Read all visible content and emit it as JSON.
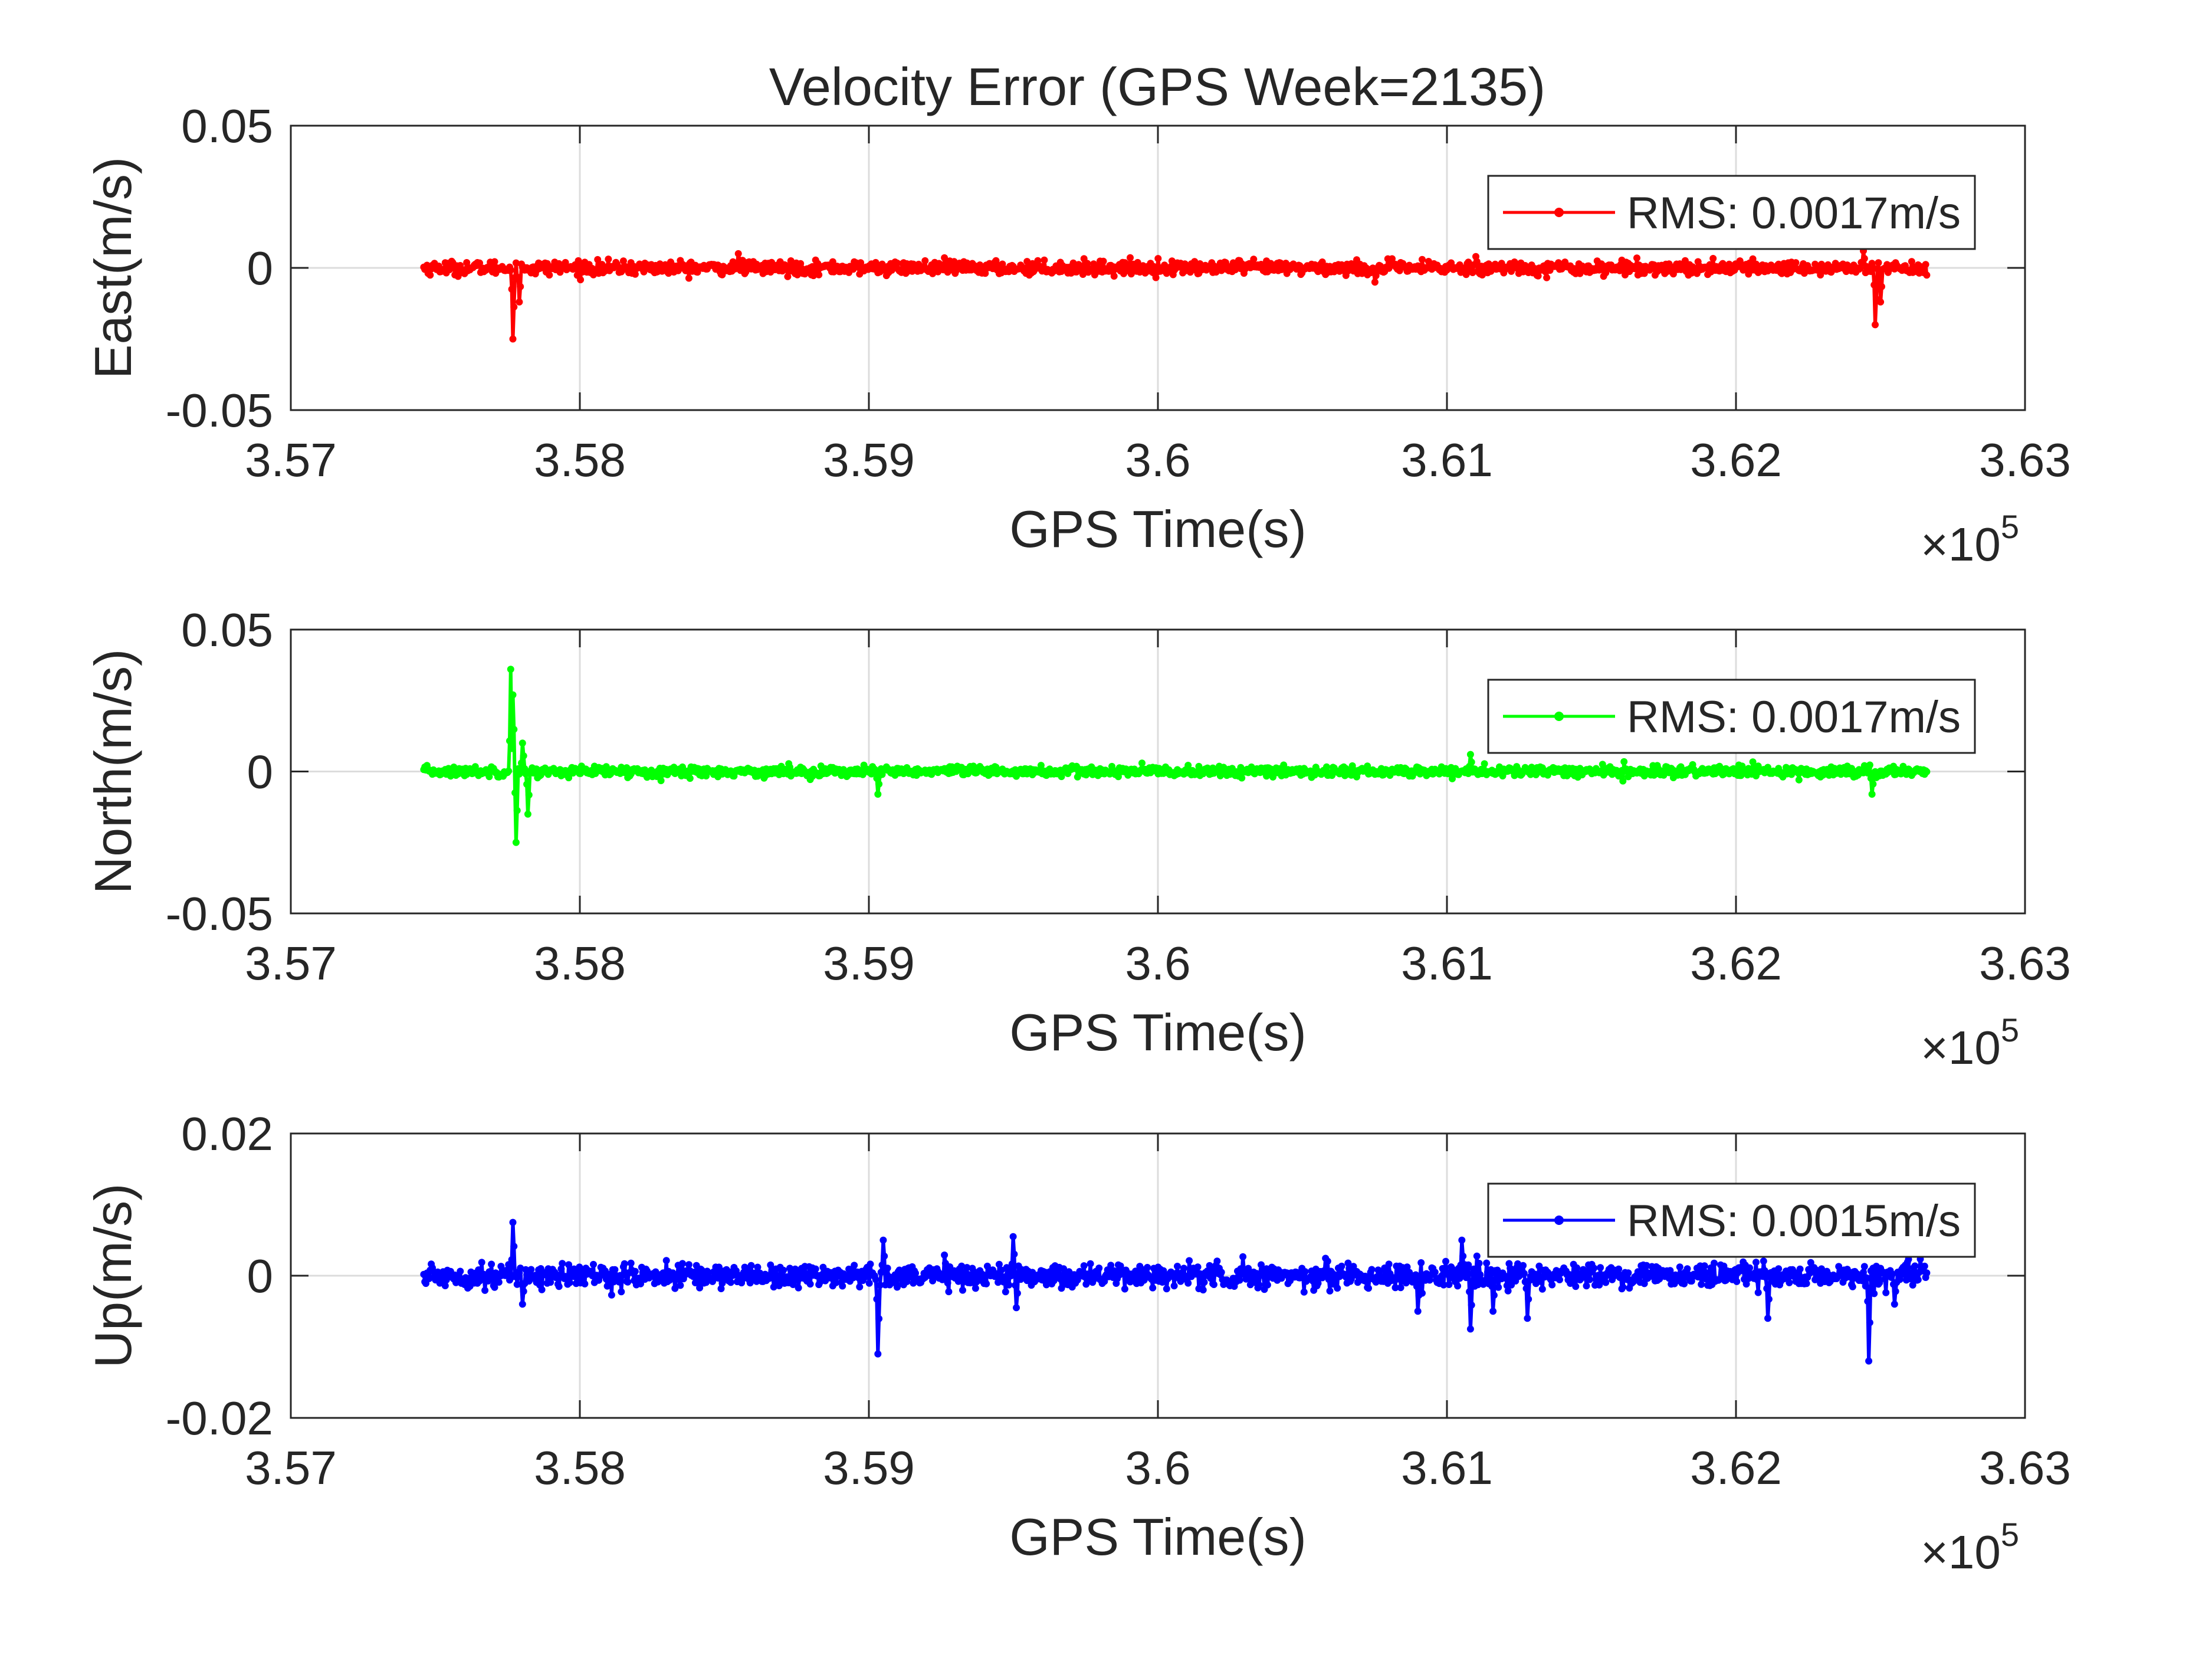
{
  "chart_data": [
    {
      "type": "line",
      "title": "Velocity Error (GPS Week=2135)",
      "xlabel": "GPS Time(s)",
      "ylabel": "East(m/s)",
      "x_multiplier": "×10",
      "x_multiplier_exponent": "5",
      "xlim": [
        357000,
        363000
      ],
      "ylim": [
        -0.05,
        0.05
      ],
      "xticks": [
        357000,
        358000,
        359000,
        360000,
        361000,
        362000,
        363000
      ],
      "xtick_labels": [
        "3.57",
        "3.58",
        "3.59",
        "3.6",
        "3.61",
        "3.62",
        "3.63"
      ],
      "yticks": [
        -0.05,
        0,
        0.05
      ],
      "ytick_labels": [
        "-0.05",
        "0",
        "0.05"
      ],
      "grid": true,
      "legend_position": "top-right",
      "series": [
        {
          "name": "RMS: 0.0017m/s",
          "color": "#ff0000",
          "noise": 0.0017,
          "x": [
            357460,
            362660
          ],
          "spikes": [
            {
              "x": 357770,
              "y": -0.025
            },
            {
              "x": 357790,
              "y": -0.012
            },
            {
              "x": 358550,
              "y": 0.005
            },
            {
              "x": 360750,
              "y": -0.005
            },
            {
              "x": 361100,
              "y": 0.004
            },
            {
              "x": 362440,
              "y": 0.006
            },
            {
              "x": 362480,
              "y": -0.02
            },
            {
              "x": 362500,
              "y": -0.012
            }
          ]
        }
      ]
    },
    {
      "type": "line",
      "title": "",
      "xlabel": "GPS Time(s)",
      "ylabel": "North(m/s)",
      "x_multiplier": "×10",
      "x_multiplier_exponent": "5",
      "xlim": [
        357000,
        363000
      ],
      "ylim": [
        -0.05,
        0.05
      ],
      "xticks": [
        357000,
        358000,
        359000,
        360000,
        361000,
        362000,
        363000
      ],
      "xtick_labels": [
        "3.57",
        "3.58",
        "3.59",
        "3.6",
        "3.61",
        "3.62",
        "3.63"
      ],
      "yticks": [
        -0.05,
        0,
        0.05
      ],
      "ytick_labels": [
        "-0.05",
        "0",
        "0.05"
      ],
      "grid": true,
      "legend_position": "top-right",
      "series": [
        {
          "name": "RMS: 0.0017m/s",
          "color": "#00ff00",
          "noise": 0.0013,
          "x": [
            357460,
            362660
          ],
          "spikes": [
            {
              "x": 357760,
              "y": 0.036
            },
            {
              "x": 357770,
              "y": 0.027
            },
            {
              "x": 357780,
              "y": -0.025
            },
            {
              "x": 357800,
              "y": 0.01
            },
            {
              "x": 357820,
              "y": -0.015
            },
            {
              "x": 359030,
              "y": -0.008
            },
            {
              "x": 361080,
              "y": 0.006
            },
            {
              "x": 362470,
              "y": -0.008
            }
          ]
        }
      ]
    },
    {
      "type": "line",
      "title": "",
      "xlabel": "GPS Time(s)",
      "ylabel": "Up(m/s)",
      "x_multiplier": "×10",
      "x_multiplier_exponent": "5",
      "xlim": [
        357000,
        363000
      ],
      "ylim": [
        -0.02,
        0.02
      ],
      "xticks": [
        357000,
        358000,
        359000,
        360000,
        361000,
        362000,
        363000
      ],
      "xtick_labels": [
        "3.57",
        "3.58",
        "3.59",
        "3.6",
        "3.61",
        "3.62",
        "3.63"
      ],
      "yticks": [
        -0.02,
        0,
        0.02
      ],
      "ytick_labels": [
        "-0.02",
        "0",
        "0.02"
      ],
      "grid": true,
      "legend_position": "top-right",
      "series": [
        {
          "name": "RMS: 0.0015m/s",
          "color": "#0000ff",
          "noise": 0.0012,
          "x": [
            357460,
            362660
          ],
          "spikes": [
            {
              "x": 357770,
              "y": 0.0075
            },
            {
              "x": 357800,
              "y": -0.004
            },
            {
              "x": 359030,
              "y": -0.011
            },
            {
              "x": 359050,
              "y": 0.005
            },
            {
              "x": 359500,
              "y": 0.0055
            },
            {
              "x": 359510,
              "y": -0.0045
            },
            {
              "x": 360900,
              "y": -0.005
            },
            {
              "x": 361050,
              "y": 0.005
            },
            {
              "x": 361080,
              "y": -0.0075
            },
            {
              "x": 361160,
              "y": -0.005
            },
            {
              "x": 361280,
              "y": -0.006
            },
            {
              "x": 362110,
              "y": -0.006
            },
            {
              "x": 362460,
              "y": -0.012
            },
            {
              "x": 362550,
              "y": -0.004
            }
          ]
        }
      ]
    }
  ]
}
